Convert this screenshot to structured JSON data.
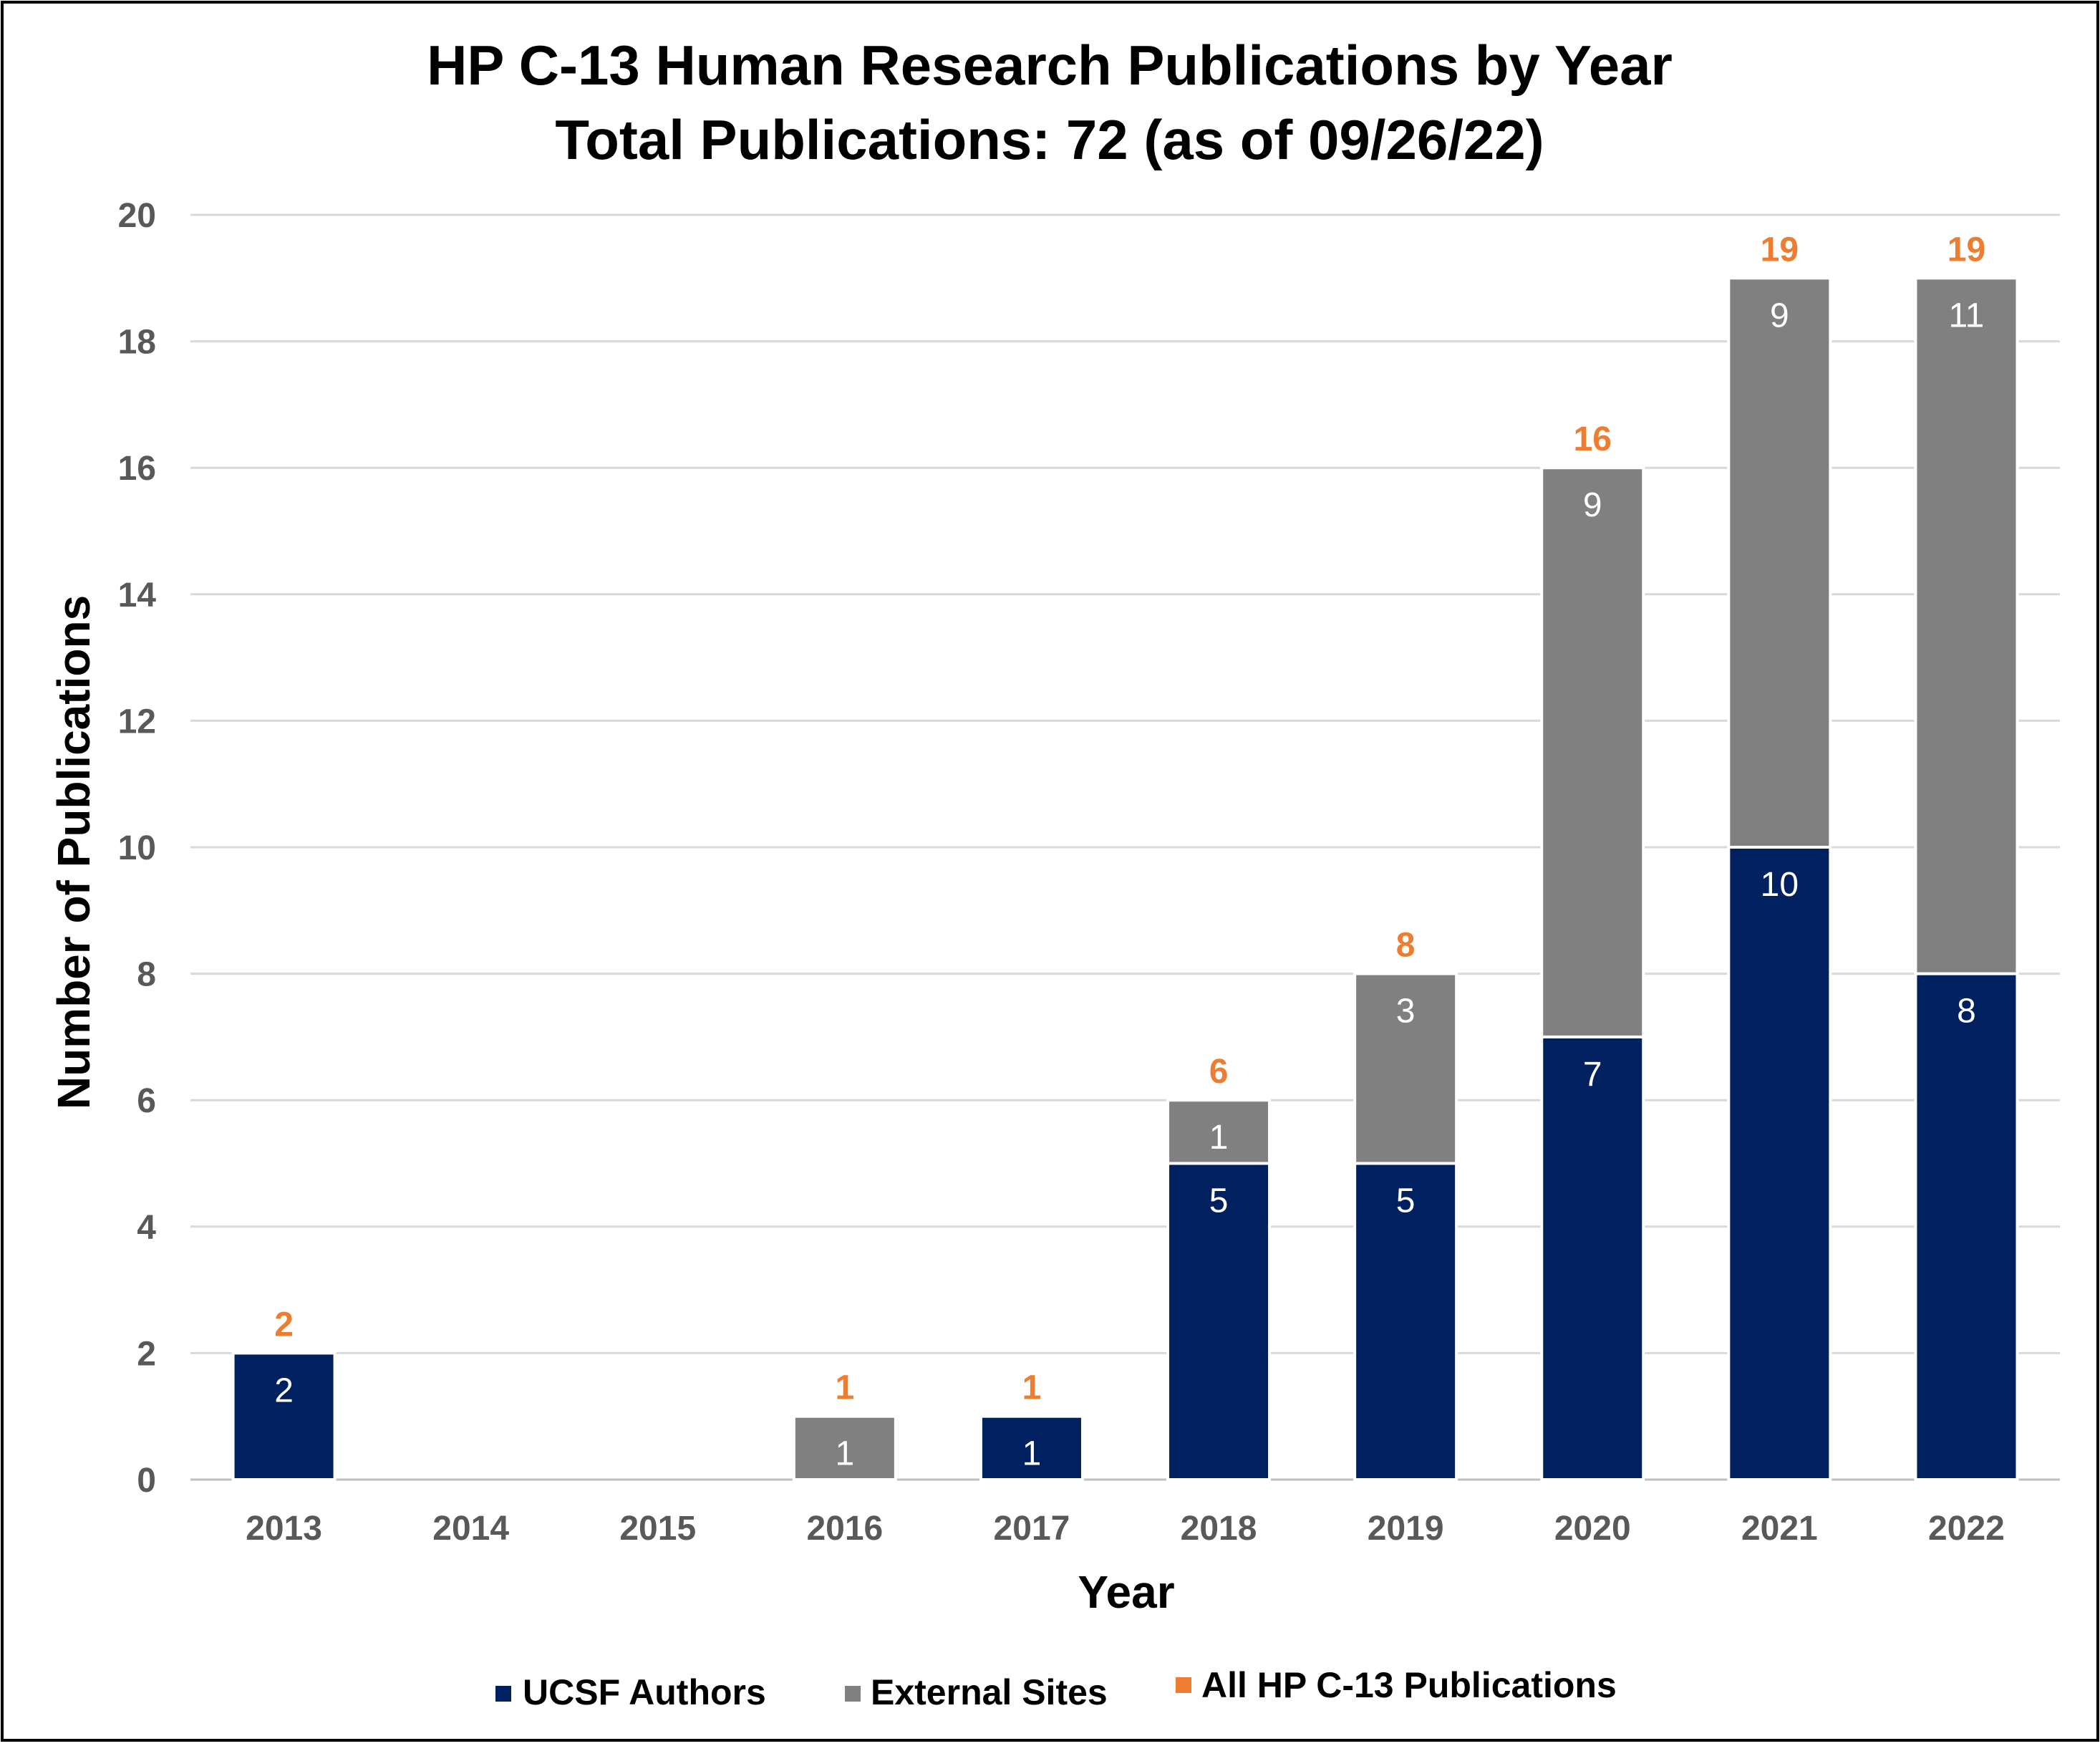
{
  "chart_data": {
    "type": "bar",
    "stacked": true,
    "title": "HP C-13 Human Research Publications by Year",
    "subtitle": "Total Publications: 72 (as of 09/26/22)",
    "xlabel": "Year",
    "ylabel": "Number of Publications",
    "categories": [
      "2013",
      "2014",
      "2015",
      "2016",
      "2017",
      "2018",
      "2019",
      "2020",
      "2021",
      "2022"
    ],
    "series": [
      {
        "name": "UCSF Authors",
        "color": "#002060",
        "values": [
          2,
          0,
          0,
          0,
          1,
          5,
          5,
          7,
          10,
          8
        ]
      },
      {
        "name": "External Sites",
        "color": "#808080",
        "values": [
          0,
          0,
          0,
          1,
          0,
          1,
          3,
          9,
          9,
          11
        ]
      }
    ],
    "totals": {
      "name": "All HP C-13 Publications",
      "color": "#ED7D31",
      "values": [
        2,
        null,
        null,
        1,
        1,
        6,
        8,
        16,
        19,
        19
      ]
    },
    "ylim": [
      0,
      20
    ],
    "yticks": [
      0,
      2,
      4,
      6,
      8,
      10,
      12,
      14,
      16,
      18,
      20
    ],
    "grid": true,
    "legend_position": "bottom",
    "colors": {
      "grid": "#d9d9d9",
      "tick_text": "#595959",
      "title_text": "#000000",
      "segment_label": "#ffffff"
    }
  }
}
